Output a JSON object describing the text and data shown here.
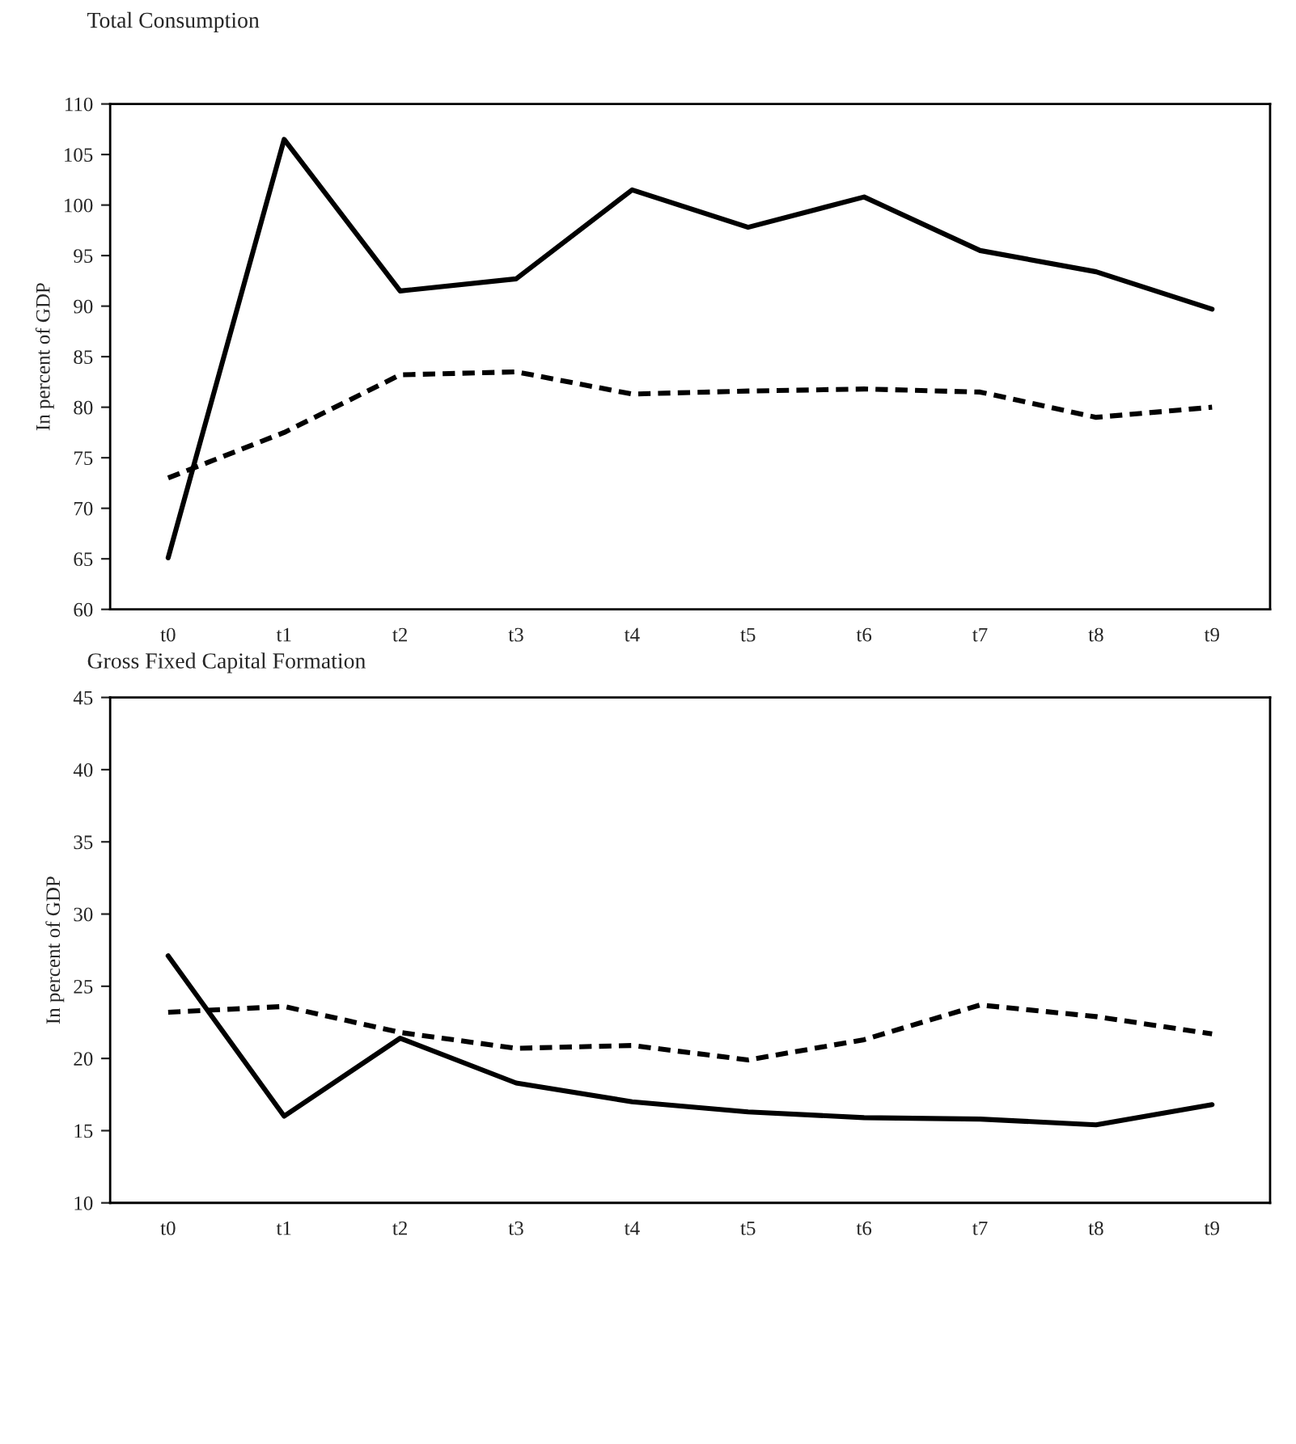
{
  "chart_data": [
    {
      "type": "line",
      "title": "Total Consumption",
      "ylabel": "In percent of GDP",
      "categories": [
        "t0",
        "t1",
        "t2",
        "t3",
        "t4",
        "t5",
        "t6",
        "t7",
        "t8",
        "t9"
      ],
      "series": [
        {
          "color": "#000000",
          "line_style": "solid",
          "values": [
            65.1,
            106.5,
            91.5,
            92.7,
            101.5,
            97.8,
            100.8,
            95.5,
            93.4,
            89.7
          ]
        },
        {
          "color": "#000000",
          "line_style": "dashed",
          "values": [
            73,
            77.5,
            83.2,
            83.5,
            81.3,
            81.6,
            81.8,
            81.5,
            79,
            80
          ]
        }
      ],
      "ylim": [
        60,
        110
      ],
      "yticks": [
        60,
        65,
        70,
        75,
        80,
        85,
        90,
        95,
        100,
        105,
        110
      ],
      "grid": false,
      "legend": false,
      "marker": "none"
    },
    {
      "type": "line",
      "title": "Gross Fixed Capital Formation",
      "ylabel": "In percent of GDP",
      "categories": [
        "t0",
        "t1",
        "t2",
        "t3",
        "t4",
        "t5",
        "t6",
        "t7",
        "t8",
        "t9"
      ],
      "series": [
        {
          "color": "#000000",
          "line_style": "solid",
          "values": [
            27.1,
            16,
            21.4,
            18.3,
            17,
            16.3,
            15.9,
            15.8,
            15.4,
            16.8
          ]
        },
        {
          "color": "#000000",
          "line_style": "dashed",
          "values": [
            23.2,
            23.6,
            21.8,
            20.7,
            20.9,
            19.9,
            21.3,
            23.7,
            22.9,
            21.7
          ]
        }
      ],
      "ylim": [
        10,
        45
      ],
      "yticks": [
        10,
        15,
        20,
        25,
        30,
        35,
        40,
        45
      ],
      "grid": false,
      "legend": false,
      "marker": "none"
    }
  ]
}
